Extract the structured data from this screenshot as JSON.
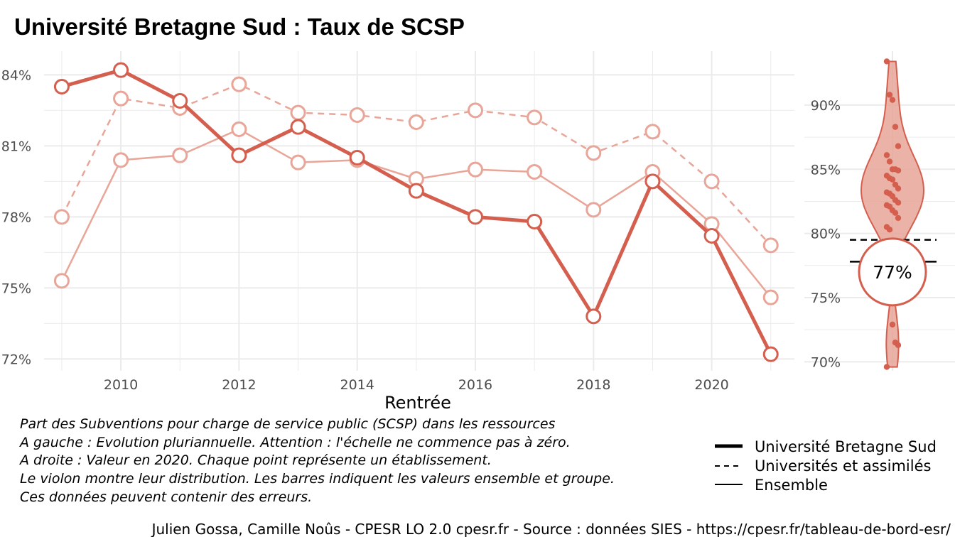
{
  "colors": {
    "accent": "#d45f4e",
    "light": "#e8a598",
    "violin_fill": "#e8a598",
    "grid": "#ebebeb"
  },
  "chart_data": {
    "type": "line",
    "title": "Université Bretagne Sud  :  Taux de SCSP",
    "xlabel": "Rentrée",
    "ylabel": "",
    "xlim": [
      2008.7,
      2021.4
    ],
    "ylim": [
      71.5,
      85.0
    ],
    "x_ticks": [
      2010,
      2012,
      2014,
      2016,
      2018,
      2020
    ],
    "y_ticks": [
      72,
      75,
      78,
      81,
      84
    ],
    "x_tick_labels": [
      "2010",
      "2012",
      "2014",
      "2016",
      "2018",
      "2020"
    ],
    "y_tick_labels": [
      "72%",
      "75%",
      "78%",
      "81%",
      "84%"
    ],
    "x": [
      2009,
      2010,
      2011,
      2012,
      2013,
      2014,
      2015,
      2016,
      2017,
      2018,
      2019,
      2020,
      2021
    ],
    "series": [
      {
        "name": "Université Bretagne Sud",
        "style": "thick",
        "values": [
          83.5,
          84.2,
          82.9,
          80.6,
          81.8,
          80.5,
          79.1,
          78.0,
          77.8,
          73.8,
          79.5,
          77.2,
          72.2
        ]
      },
      {
        "name": "Universités et assimilés",
        "style": "dashed",
        "values": [
          78.0,
          83.0,
          82.6,
          83.6,
          82.4,
          82.3,
          82.0,
          82.5,
          82.2,
          80.7,
          81.6,
          79.5,
          76.8
        ]
      },
      {
        "name": "Ensemble",
        "style": "thin",
        "values": [
          75.3,
          80.4,
          80.6,
          81.7,
          80.3,
          80.4,
          79.6,
          80.0,
          79.9,
          78.3,
          79.9,
          77.7,
          74.6
        ]
      }
    ],
    "legend": "bottom-right",
    "grid": true,
    "violin": {
      "ylim": [
        69.3,
        94.2
      ],
      "y_ticks": [
        70,
        75,
        80,
        85,
        90
      ],
      "y_tick_labels": [
        "70%",
        "75%",
        "80%",
        "85%",
        "90%"
      ],
      "points": [
        93.4,
        90.8,
        90.4,
        88.3,
        86.8,
        86.1,
        85.6,
        85.0,
        85.0,
        84.9,
        84.5,
        84.3,
        84.2,
        83.8,
        83.5,
        83.2,
        83.1,
        82.9,
        82.6,
        82.4,
        82.2,
        82.1,
        81.8,
        81.6,
        81.2,
        80.5,
        80.3,
        72.9,
        71.5,
        71.3,
        69.6
      ],
      "ensemble_value": 79.5,
      "group_value": 77.8,
      "highlight_value": 77,
      "highlight_label": "77%"
    }
  },
  "notes": [
    "Part des Subventions pour charge de service public (SCSP) dans les ressources",
    "A gauche : Evolution pluriannuelle. Attention : l'échelle ne commence pas à zéro.",
    "A droite : Valeur en 2020. Chaque point représente un établissement.",
    "Le violon montre leur distribution. Les barres indiquent les valeurs ensemble et groupe.",
    "Ces données peuvent contenir des erreurs."
  ],
  "caption": "Julien Gossa, Camille Noûs - CPESR LO 2.0 cpesr.fr - Source : données SIES - https://cpesr.fr/tableau-de-bord-esr/"
}
